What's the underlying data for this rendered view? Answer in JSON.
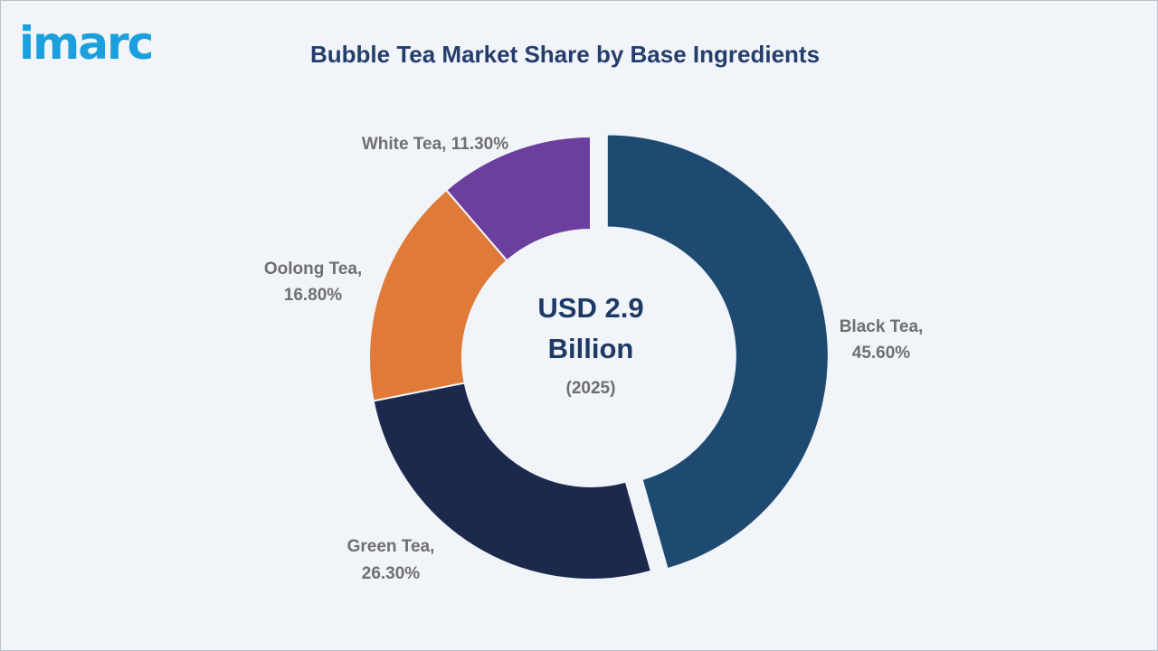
{
  "brand": {
    "logo_text": "imarc"
  },
  "colors": {
    "black_tea": "#1e4a72",
    "green_tea": "#1b2a4c",
    "oolong_tea": "#e07a38",
    "white_tea": "#6c3f9e"
  },
  "chart_data": {
    "type": "pie",
    "title": "Bubble Tea Market Share by Base Ingredients",
    "unit": "%",
    "center": {
      "value": "USD 2.9",
      "unit": "Billion",
      "year": "(2025)"
    },
    "categories": [
      "Black Tea",
      "Green Tea",
      "Oolong Tea",
      "White Tea"
    ],
    "values": [
      45.6,
      26.3,
      16.8,
      11.3
    ],
    "labels": [
      {
        "name": "Black Tea,",
        "value": "45.60%"
      },
      {
        "name": "Green Tea,",
        "value": "26.30%"
      },
      {
        "name": "Oolong Tea,",
        "value": "16.80%"
      },
      {
        "name": "White Tea, 11.30%",
        "value": ""
      }
    ],
    "colors": [
      "#1e4a72",
      "#1b2a4c",
      "#e07a38",
      "#6c3f9e"
    ],
    "exploded": "Black Tea",
    "donut": true,
    "legend": "none"
  }
}
